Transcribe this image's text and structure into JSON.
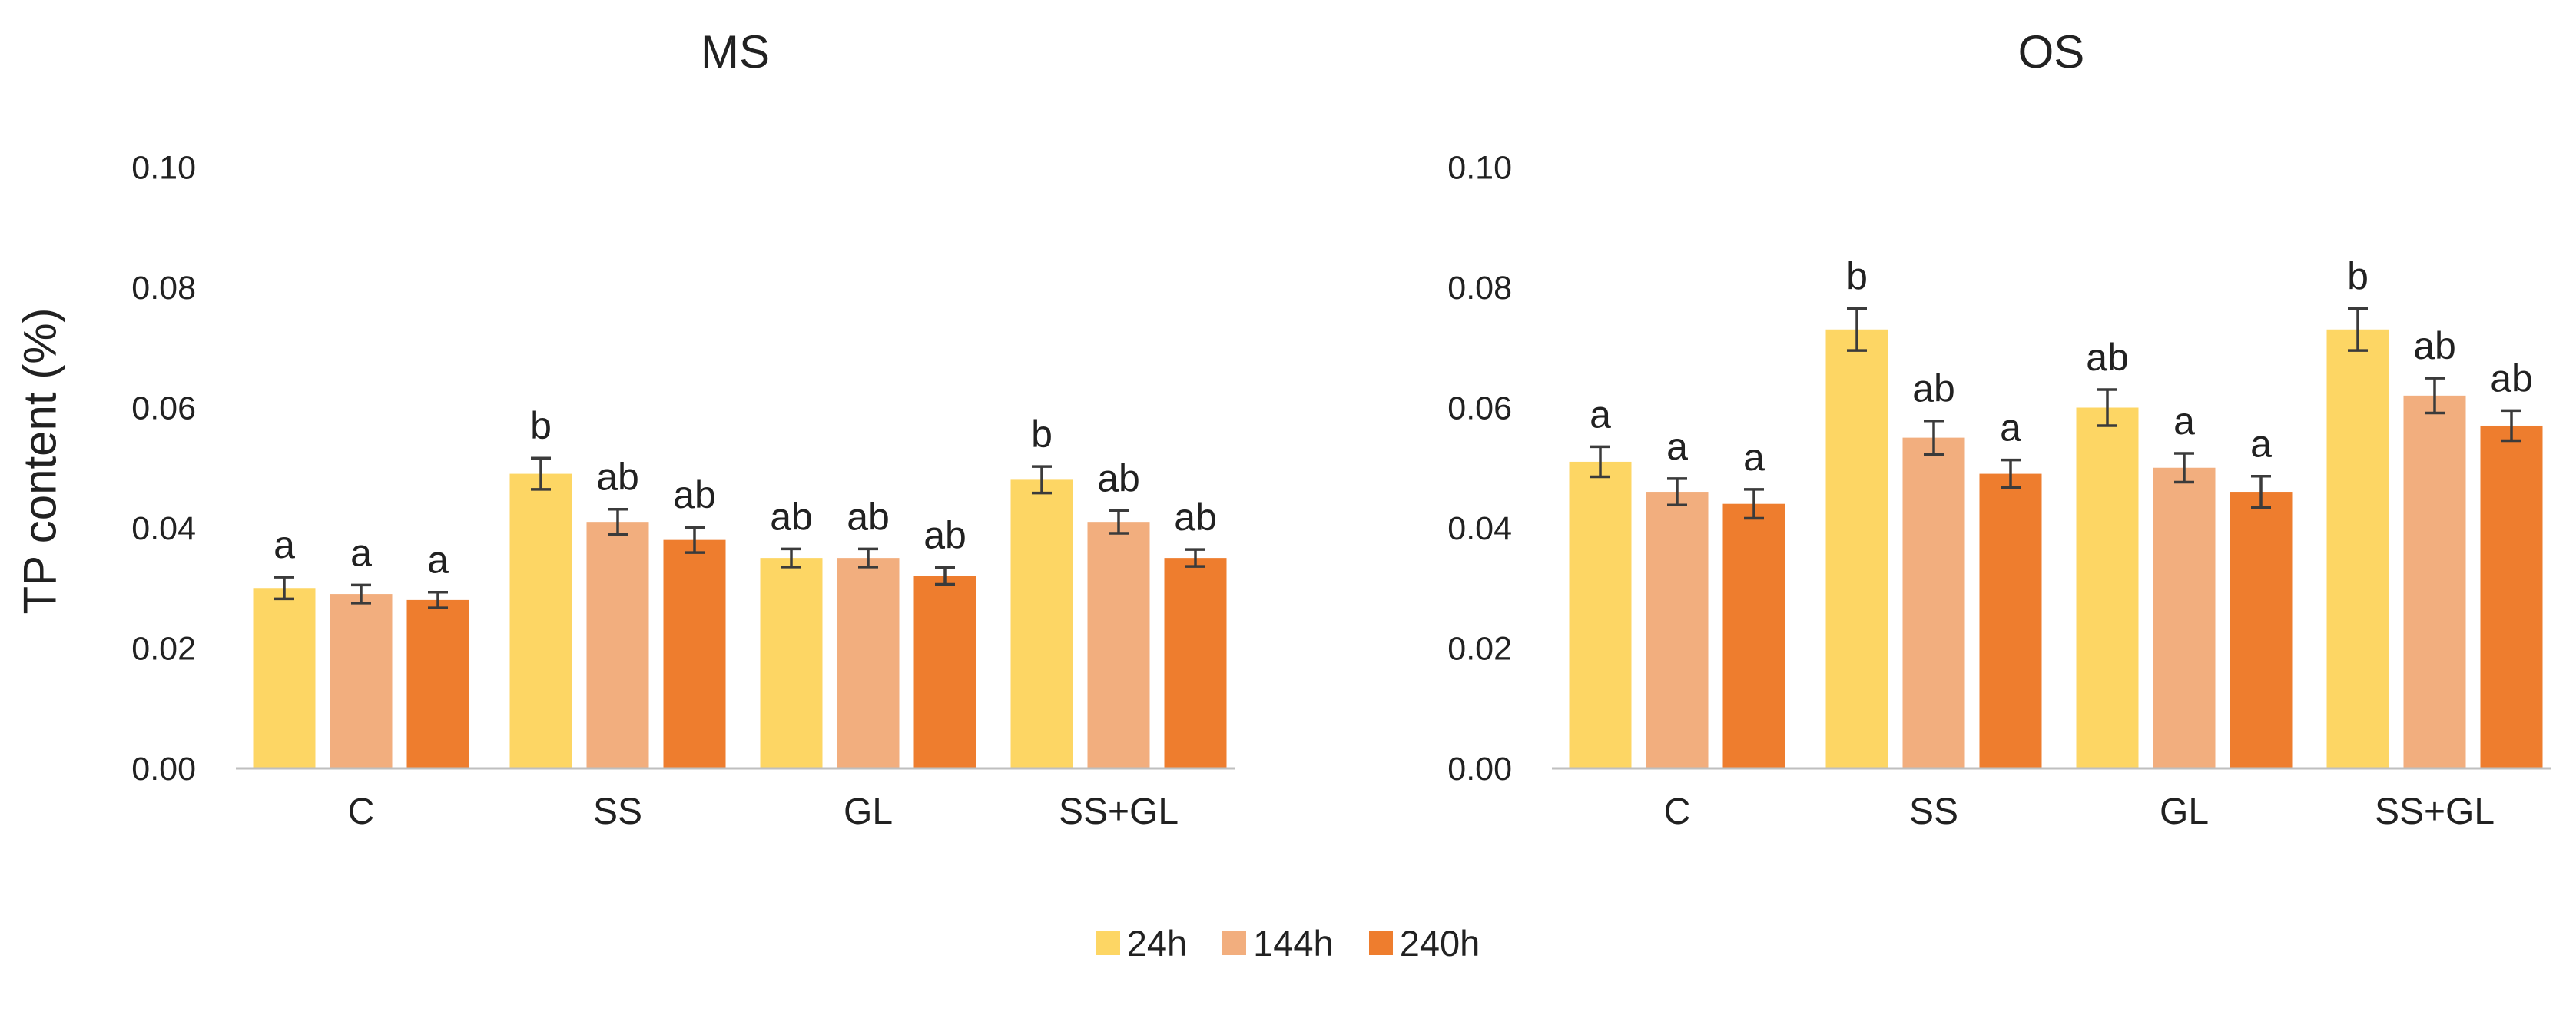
{
  "figure": {
    "ylabel": "TP content (%)"
  },
  "legend": {
    "items": [
      {
        "label": "24h",
        "color": "#FDD664"
      },
      {
        "label": "144h",
        "color": "#F2AE7E"
      },
      {
        "label": "240h",
        "color": "#EE7D2E"
      }
    ]
  },
  "colors": {
    "axis_line": "#BFBFBF",
    "error_bar": "#3B3B3B",
    "text": "#212121",
    "background": "#FFFFFF"
  },
  "chart_data": [
    {
      "type": "bar",
      "title": "MS",
      "ylabel": "TP content (%)",
      "categories": [
        "C",
        "SS",
        "GL",
        "SS+GL"
      ],
      "ylim": [
        0,
        0.1
      ],
      "ytick_step": 0.02,
      "ytick_labels": [
        "0.00",
        "0.02",
        "0.04",
        "0.06",
        "0.08",
        "0.10"
      ],
      "grid": false,
      "legend_position": "bottom",
      "series": [
        {
          "name": "24h",
          "color": "#FDD664",
          "values": [
            0.03,
            0.049,
            0.035,
            0.048
          ],
          "errors": [
            0.0018,
            0.0026,
            0.0015,
            0.0022
          ],
          "sig_letters": [
            "a",
            "b",
            "ab",
            "b"
          ]
        },
        {
          "name": "144h",
          "color": "#F2AE7E",
          "values": [
            0.029,
            0.041,
            0.035,
            0.041
          ],
          "errors": [
            0.0015,
            0.0021,
            0.0015,
            0.0019
          ],
          "sig_letters": [
            "a",
            "ab",
            "ab",
            "ab"
          ]
        },
        {
          "name": "240h",
          "color": "#EE7D2E",
          "values": [
            0.028,
            0.038,
            0.032,
            0.035
          ],
          "errors": [
            0.0013,
            0.0021,
            0.0014,
            0.0014
          ],
          "sig_letters": [
            "a",
            "ab",
            "ab",
            "ab"
          ]
        }
      ]
    },
    {
      "type": "bar",
      "title": "OS",
      "ylabel": "",
      "categories": [
        "C",
        "SS",
        "GL",
        "SS+GL"
      ],
      "ylim": [
        0,
        0.1
      ],
      "ytick_step": 0.02,
      "ytick_labels": [
        "0.00",
        "0.02",
        "0.04",
        "0.06",
        "0.08",
        "0.10"
      ],
      "grid": false,
      "legend_position": "bottom",
      "series": [
        {
          "name": "24h",
          "color": "#FDD664",
          "values": [
            0.051,
            0.073,
            0.06,
            0.073
          ],
          "errors": [
            0.0025,
            0.0035,
            0.003,
            0.0035
          ],
          "sig_letters": [
            "a",
            "b",
            "ab",
            "b"
          ]
        },
        {
          "name": "144h",
          "color": "#F2AE7E",
          "values": [
            0.046,
            0.055,
            0.05,
            0.062
          ],
          "errors": [
            0.0022,
            0.0028,
            0.0024,
            0.0029
          ],
          "sig_letters": [
            "a",
            "ab",
            "a",
            "ab"
          ]
        },
        {
          "name": "240h",
          "color": "#EE7D2E",
          "values": [
            0.044,
            0.049,
            0.046,
            0.057
          ],
          "errors": [
            0.0024,
            0.0023,
            0.0026,
            0.0025
          ],
          "sig_letters": [
            "a",
            "a",
            "a",
            "ab"
          ]
        }
      ]
    }
  ]
}
